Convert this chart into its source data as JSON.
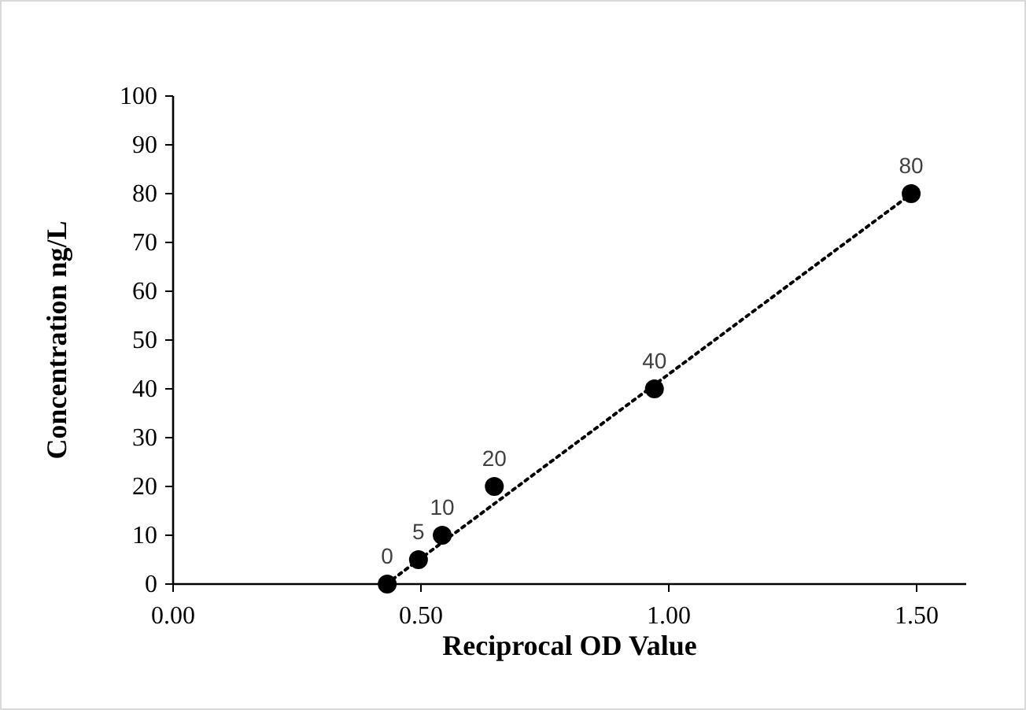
{
  "chart_data": {
    "type": "scatter",
    "xlabel": "Reciprocal OD Value",
    "ylabel": "Concentration ng/L",
    "xlim": [
      0,
      1.6
    ],
    "xticks": [
      {
        "value": 0,
        "label": "0.00"
      },
      {
        "value": 0.5,
        "label": "0.50"
      },
      {
        "value": 1,
        "label": "1.00"
      },
      {
        "value": 1.5,
        "label": "1.50"
      }
    ],
    "ylim": [
      0,
      100
    ],
    "yticks": [
      0,
      10,
      20,
      30,
      40,
      50,
      60,
      70,
      80,
      90,
      100
    ],
    "grid": false,
    "series": [
      {
        "type": "line",
        "color": "#000000",
        "x": [
          0.43,
          1.49
        ],
        "values": [
          0,
          80
        ],
        "line_style": "dotted",
        "marker": "none"
      },
      {
        "color": "#000000",
        "x": [
          0.432,
          0.495,
          0.543,
          0.648,
          0.971,
          1.489
        ],
        "values": [
          0,
          5,
          10,
          20,
          40,
          80
        ],
        "marker": "circle",
        "data_labels": true
      }
    ]
  }
}
